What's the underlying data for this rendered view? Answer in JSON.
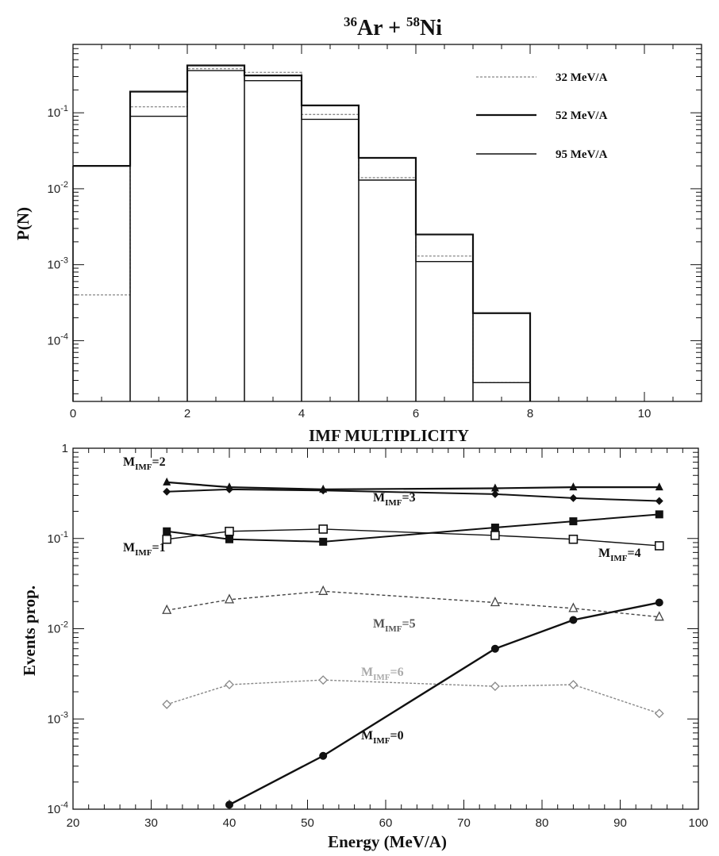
{
  "chart_data": [
    {
      "type": "line",
      "title_parts": {
        "m1": "36",
        "e1": "Ar + ",
        "m2": "58",
        "e2": "Ni"
      },
      "xlabel": "IMF MULTIPLICITY",
      "ylabel": "P(N)",
      "xlim": [
        0,
        11
      ],
      "ylim_log10": [
        -4.8,
        -0.1
      ],
      "yscale": "log",
      "x_ticks": [
        0,
        2,
        4,
        6,
        8,
        10
      ],
      "x_tick_labels": [
        "0",
        "2",
        "4",
        "6",
        "8",
        "10"
      ],
      "y_ticks": [
        {
          "exp": -1,
          "label": "10",
          "sup": "-1"
        },
        {
          "exp": -2,
          "label": "10",
          "sup": "-2"
        },
        {
          "exp": -3,
          "label": "10",
          "sup": "-3"
        },
        {
          "exp": -4,
          "label": "10",
          "sup": "-4"
        }
      ],
      "series": [
        {
          "name": "32 MeV/A",
          "color": "#888888",
          "dash": "3,2",
          "width": 1.3,
          "bins": [
            [
              0,
              1,
              0.0004
            ],
            [
              1,
              2,
              0.12
            ],
            [
              2,
              3,
              0.38
            ],
            [
              3,
              4,
              0.34
            ],
            [
              4,
              5,
              0.095
            ],
            [
              5,
              6,
              0.014
            ],
            [
              6,
              7,
              0.0013
            ],
            [
              7,
              8,
              2.8e-05
            ]
          ]
        },
        {
          "name": "52 MeV/A",
          "color": "#111111",
          "dash": "",
          "width": 2.2,
          "bins": [
            [
              0,
              1,
              0.02
            ],
            [
              1,
              2,
              0.19
            ],
            [
              2,
              3,
              0.42
            ],
            [
              3,
              4,
              0.31
            ],
            [
              4,
              5,
              0.125
            ],
            [
              5,
              6,
              0.0255
            ],
            [
              6,
              7,
              0.0025
            ],
            [
              7,
              8,
              0.00023
            ]
          ]
        },
        {
          "name": "95 MeV/A",
          "color": "#111111",
          "dash": "",
          "width": 1.4,
          "bins": [
            [
              0,
              1,
              0.02
            ],
            [
              1,
              2,
              0.09
            ],
            [
              2,
              3,
              0.36
            ],
            [
              3,
              4,
              0.265
            ],
            [
              4,
              5,
              0.082
            ],
            [
              5,
              6,
              0.013
            ],
            [
              6,
              7,
              0.0011
            ],
            [
              7,
              8,
              2.8e-05
            ]
          ]
        }
      ]
    },
    {
      "type": "line",
      "xlabel": "Energy (MeV/A)",
      "ylabel": "Events prop.",
      "xlim": [
        20,
        100
      ],
      "ylim_log10": [
        -4,
        0
      ],
      "yscale": "log",
      "x_ticks": [
        20,
        30,
        40,
        50,
        60,
        70,
        80,
        90,
        100
      ],
      "x_tick_labels": [
        "20",
        "30",
        "40",
        "50",
        "60",
        "70",
        "80",
        "90",
        "100"
      ],
      "y_ticks": [
        {
          "exp": 0,
          "label": "1",
          "sup": ""
        },
        {
          "exp": -1,
          "label": "10",
          "sup": "-1"
        },
        {
          "exp": -2,
          "label": "10",
          "sup": "-2"
        },
        {
          "exp": -3,
          "label": "10",
          "sup": "-3"
        },
        {
          "exp": -4,
          "label": "10",
          "sup": "-4"
        }
      ],
      "series": [
        {
          "name": "M_IMF=2",
          "marker": "filled-triangle",
          "color": "#111111",
          "dash": "",
          "width": 2.2,
          "x": [
            32,
            40,
            52,
            74,
            84,
            95
          ],
          "y": [
            0.42,
            0.37,
            0.35,
            0.36,
            0.37,
            0.37
          ]
        },
        {
          "name": "M_IMF=3",
          "marker": "filled-diamond",
          "color": "#111111",
          "dash": "",
          "width": 2.0,
          "x": [
            32,
            40,
            52,
            74,
            84,
            95
          ],
          "y": [
            0.33,
            0.35,
            0.34,
            0.31,
            0.28,
            0.26
          ]
        },
        {
          "name": "M_IMF=1",
          "marker": "filled-square",
          "color": "#111111",
          "dash": "",
          "width": 2.0,
          "x": [
            32,
            40,
            52,
            74,
            84,
            95
          ],
          "y": [
            0.12,
            0.098,
            0.092,
            0.132,
            0.155,
            0.185
          ]
        },
        {
          "name": "M_IMF=4",
          "marker": "open-square",
          "color": "#111111",
          "dash": "",
          "width": 1.4,
          "x": [
            32,
            40,
            52,
            74,
            84,
            95
          ],
          "y": [
            0.098,
            0.12,
            0.127,
            0.108,
            0.098,
            0.083
          ]
        },
        {
          "name": "M_IMF=5",
          "marker": "open-triangle",
          "color": "#444444",
          "dash": "4,3",
          "width": 1.4,
          "x": [
            32,
            40,
            52,
            74,
            84,
            95
          ],
          "y": [
            0.016,
            0.021,
            0.026,
            0.0195,
            0.0168,
            0.0135
          ]
        },
        {
          "name": "M_IMF=6",
          "marker": "open-diamond",
          "color": "#888888",
          "dash": "3,2",
          "width": 1.4,
          "x": [
            32,
            40,
            52,
            74,
            84,
            95
          ],
          "y": [
            0.00145,
            0.0024,
            0.0027,
            0.0023,
            0.0024,
            0.00115
          ]
        },
        {
          "name": "M_IMF=0",
          "marker": "filled-circle",
          "color": "#111111",
          "dash": "",
          "width": 2.4,
          "x": [
            40,
            52,
            74,
            84,
            95
          ],
          "y": [
            0.000112,
            0.00039,
            0.006,
            0.0125,
            0.0195
          ]
        }
      ],
      "annotations": [
        {
          "base": "M",
          "sub": "IMF",
          "tail": "=2"
        },
        {
          "base": "M",
          "sub": "IMF",
          "tail": "=3"
        },
        {
          "base": "M",
          "sub": "IMF",
          "tail": "=1"
        },
        {
          "base": "M",
          "sub": "IMF",
          "tail": "=4"
        },
        {
          "base": "M",
          "sub": "IMF",
          "tail": "=5"
        },
        {
          "base": "M",
          "sub": "IMF",
          "tail": "=6"
        },
        {
          "base": "M",
          "sub": "IMF",
          "tail": "=0"
        }
      ]
    }
  ]
}
